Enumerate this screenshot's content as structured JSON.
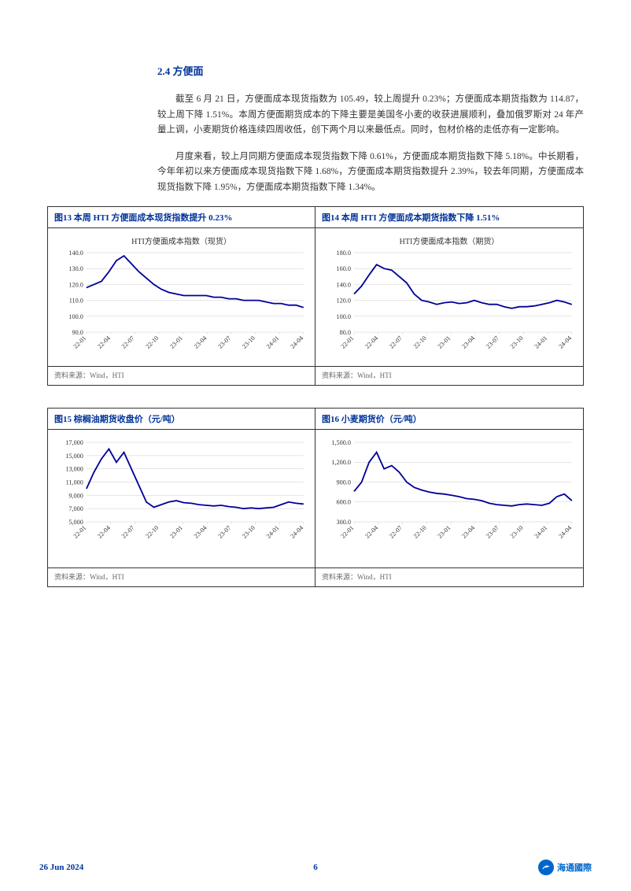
{
  "heading": "2.4  方便面",
  "para1": "截至 6 月 21 日，方便面成本现货指数为 105.49，较上周提升 0.23%；方便面成本期货指数为 114.87，较上周下降 1.51%。本周方便面期货成本的下降主要是美国冬小麦的收获进展顺利，叠加俄罗斯对 24 年产量上调，小麦期货价格连续四周收低，创下两个月以来最低点。同时，包材价格的走低亦有一定影响。",
  "para2": "月度来看，较上月同期方便面成本现货指数下降 0.61%，方便面成本期货指数下降 5.18%。中长期看，今年年初以来方便面成本现货指数下降 1.68%，方便面成本期货指数提升 2.39%，较去年同期，方便面成本现货指数下降 1.95%，方便面成本期货指数下降 1.34%。",
  "charts": [
    {
      "title": "图13 本周 HTI 方便面成本现货指数提升 0.23%",
      "inner_title": "HTI方便面成本指数（现货）",
      "source": "资料来源：Wind，HTI",
      "type": "line",
      "line_color": "#000099",
      "background_color": "#ffffff",
      "ylim": [
        90,
        140
      ],
      "ytick_step": 10,
      "yticks": [
        "90.0",
        "100.0",
        "110.0",
        "120.0",
        "130.0",
        "140.0"
      ],
      "xlabels": [
        "22-01",
        "22-04",
        "22-07",
        "22-10",
        "23-01",
        "23-04",
        "23-07",
        "23-10",
        "24-01",
        "24-04"
      ],
      "y_values": [
        118,
        120,
        122,
        128,
        135,
        138,
        133,
        128,
        124,
        120,
        117,
        115,
        114,
        113,
        113,
        113,
        113,
        112,
        112,
        111,
        111,
        110,
        110,
        110,
        109,
        108,
        108,
        107,
        107,
        105.5
      ]
    },
    {
      "title": "图14 本周 HTI 方便面成本期货指数下降 1.51%",
      "inner_title": "HTI方便面成本指数（期货）",
      "source": "资料来源：Wind，HTI",
      "type": "line",
      "line_color": "#000099",
      "background_color": "#ffffff",
      "ylim": [
        80,
        180
      ],
      "ytick_step": 20,
      "yticks": [
        "80.0",
        "100.0",
        "120.0",
        "140.0",
        "160.0",
        "180.0"
      ],
      "xlabels": [
        "22-01",
        "22-04",
        "22-07",
        "22-10",
        "23-01",
        "23-04",
        "23-07",
        "23-10",
        "24-01",
        "24-04"
      ],
      "y_values": [
        128,
        138,
        152,
        165,
        160,
        158,
        150,
        142,
        128,
        120,
        118,
        115,
        117,
        118,
        116,
        117,
        120,
        117,
        115,
        115,
        112,
        110,
        112,
        112,
        113,
        115,
        117,
        120,
        118,
        114.87
      ]
    },
    {
      "title": "图15 棕榈油期货收盘价（元/吨）",
      "inner_title": "",
      "source": "资料来源：Wind，HTI",
      "type": "line",
      "line_color": "#000099",
      "background_color": "#ffffff",
      "ylim": [
        5000,
        17000
      ],
      "ytick_step": 2000,
      "yticks": [
        "5,000",
        "7,000",
        "9,000",
        "11,000",
        "13,000",
        "15,000",
        "17,000"
      ],
      "xlabels": [
        "22-01",
        "22-04",
        "22-07",
        "22-10",
        "23-01",
        "23-04",
        "23-07",
        "23-10",
        "24-01",
        "24-04"
      ],
      "y_values": [
        10000,
        12500,
        14500,
        16000,
        14000,
        15500,
        13000,
        10500,
        8000,
        7200,
        7600,
        8000,
        8200,
        7900,
        7800,
        7600,
        7500,
        7400,
        7500,
        7300,
        7200,
        7000,
        7100,
        7000,
        7100,
        7200,
        7600,
        8000,
        7800,
        7700
      ]
    },
    {
      "title": "图16 小麦期货价（元/吨）",
      "inner_title": "",
      "source": "资料来源：Wind，HTI",
      "type": "line",
      "line_color": "#000099",
      "background_color": "#ffffff",
      "ylim": [
        300,
        1500
      ],
      "ytick_step": 300,
      "yticks": [
        "300.0",
        "600.0",
        "900.0",
        "1,200.0",
        "1,500.0"
      ],
      "xlabels": [
        "22-01",
        "22-04",
        "22-07",
        "22-10",
        "23-01",
        "23-04",
        "23-07",
        "23-10",
        "24-01",
        "24-04"
      ],
      "y_values": [
        760,
        900,
        1200,
        1350,
        1100,
        1150,
        1050,
        900,
        820,
        780,
        750,
        730,
        720,
        700,
        680,
        650,
        640,
        620,
        580,
        560,
        550,
        540,
        560,
        570,
        560,
        550,
        580,
        680,
        720,
        620
      ]
    }
  ],
  "footer": {
    "date": "26 Jun 2024",
    "page": "6",
    "logo_text": "海通國際"
  }
}
